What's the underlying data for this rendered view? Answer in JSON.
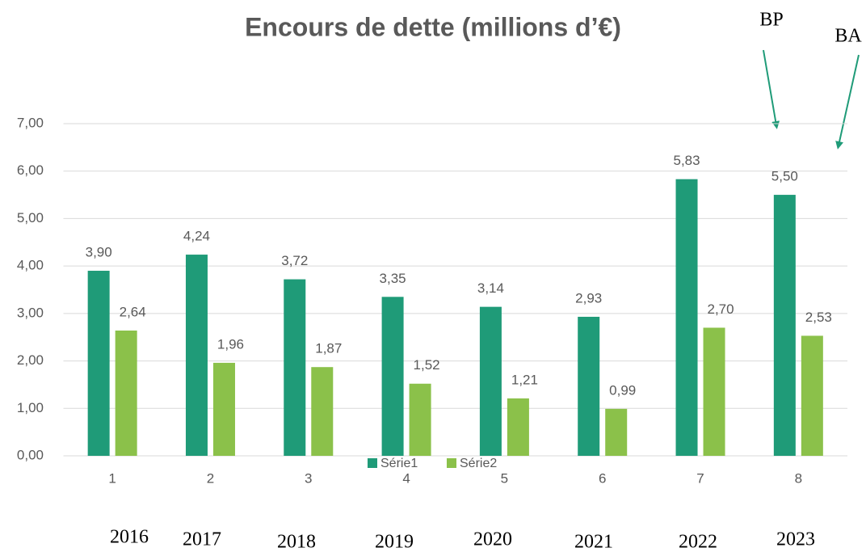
{
  "chart_data": {
    "type": "bar",
    "title": "Encours de dette (millions d’€)",
    "categories": [
      "1",
      "2",
      "3",
      "4",
      "5",
      "6",
      "7",
      "8"
    ],
    "series": [
      {
        "name": "Série1",
        "color": "#1f9b78",
        "values": [
          3.9,
          4.24,
          3.72,
          3.35,
          3.14,
          2.93,
          5.83,
          5.5
        ],
        "value_labels": [
          "3,90",
          "4,24",
          "3,72",
          "3,35",
          "3,14",
          "2,93",
          "5,83",
          "5,50"
        ]
      },
      {
        "name": "Série2",
        "color": "#8bc14a",
        "values": [
          2.64,
          1.96,
          1.87,
          1.52,
          1.21,
          0.99,
          2.7,
          2.53
        ],
        "value_labels": [
          "2,64",
          "1,96",
          "1,87",
          "1,52",
          "1,21",
          "0,99",
          "2,70",
          "2,53"
        ]
      }
    ],
    "ylim": [
      0,
      7
    ],
    "yticks": [
      {
        "value": 0,
        "label": "0,00"
      },
      {
        "value": 1,
        "label": "1,00"
      },
      {
        "value": 2,
        "label": "2,00"
      },
      {
        "value": 3,
        "label": "3,00"
      },
      {
        "value": 4,
        "label": "4,00"
      },
      {
        "value": 5,
        "label": "5,00"
      },
      {
        "value": 6,
        "label": "6,00"
      },
      {
        "value": 7,
        "label": "7,00"
      }
    ],
    "grid": true,
    "legend": "bottom",
    "year_labels": [
      "2016",
      "2017",
      "2018",
      "2019",
      "2020",
      "2021",
      "2022",
      "2023"
    ],
    "annotations": [
      "BP",
      "BA"
    ]
  }
}
